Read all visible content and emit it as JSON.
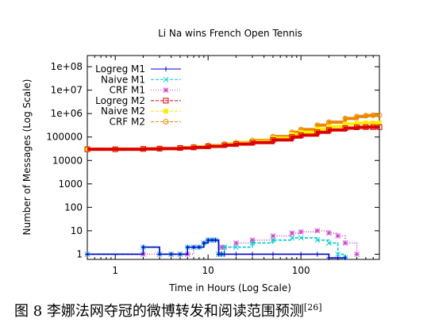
{
  "chart_data": {
    "type": "line",
    "title": "Li Na wins French Open Tennis",
    "xlabel": "Time in Hours (Log Scale)",
    "ylabel": "Number of Messages (Log Scale)",
    "x_scale": "log",
    "y_scale": "log",
    "xlim": [
      0.5,
      700
    ],
    "ylim": [
      0.6,
      300000000
    ],
    "x_ticks": [
      1,
      10,
      100
    ],
    "x_tick_labels": [
      "1",
      "10",
      "100"
    ],
    "y_ticks": [
      1,
      10,
      100,
      1000,
      10000,
      100000,
      1000000,
      10000000,
      100000000
    ],
    "y_tick_labels": [
      "1",
      "10",
      "100",
      "1000",
      "10000",
      "100000",
      "1e+06",
      "1e+07",
      "1e+08"
    ],
    "grid": false,
    "legend_position": "top-left",
    "series": [
      {
        "name": "Logreg M1",
        "color": "#0000cc",
        "marker": "plus",
        "line": "solid",
        "x": [
          0.5,
          2,
          3,
          4,
          5,
          6,
          7,
          8,
          9,
          10,
          11,
          12,
          13,
          14,
          15,
          20,
          30,
          50,
          100,
          150,
          200,
          250,
          300
        ],
        "y": [
          1,
          2,
          1,
          1,
          1,
          2,
          2,
          2,
          3,
          4,
          4,
          4,
          1,
          1,
          1,
          1,
          1,
          1,
          1,
          1,
          0.7,
          0.7,
          0.7
        ]
      },
      {
        "name": "Naive M1",
        "color": "#00cccc",
        "marker": "cross",
        "line": "dashed",
        "x": [
          0.5,
          2,
          3,
          4,
          5,
          6,
          7,
          8,
          9,
          10,
          11,
          12,
          13,
          14,
          15,
          20,
          30,
          50,
          80,
          100,
          150,
          200,
          250,
          300
        ],
        "y": [
          1,
          2,
          1,
          1,
          1,
          2,
          2,
          2,
          3,
          4,
          4,
          4,
          1,
          1,
          2,
          2,
          3,
          4,
          5,
          5,
          4,
          3,
          1,
          0.7
        ]
      },
      {
        "name": "CRF M1",
        "color": "#cc44cc",
        "marker": "star",
        "line": "dotted",
        "x": [
          0.5,
          2,
          3,
          4,
          5,
          6,
          7,
          8,
          9,
          10,
          11,
          12,
          13,
          14,
          15,
          20,
          30,
          50,
          80,
          100,
          150,
          200,
          250,
          300,
          400
        ],
        "y": [
          1,
          1,
          1,
          1,
          1,
          1,
          2,
          2,
          3,
          4,
          4,
          4,
          1,
          2,
          2,
          3,
          4,
          6,
          8,
          9,
          10,
          8,
          6,
          3,
          1
        ]
      },
      {
        "name": "Logreg M2",
        "color": "#dd0000",
        "marker": "square",
        "line": "dashed",
        "x": [
          0.5,
          1,
          2,
          3,
          5,
          7,
          10,
          15,
          20,
          30,
          50,
          80,
          100,
          150,
          200,
          300,
          400,
          500,
          600,
          700
        ],
        "y": [
          30000,
          30000,
          31000,
          32000,
          34000,
          36000,
          40000,
          45000,
          50000,
          58000,
          75000,
          100000,
          120000,
          160000,
          200000,
          240000,
          260000,
          265000,
          265000,
          265000
        ]
      },
      {
        "name": "Naive M2",
        "color": "#ffee00",
        "marker": "filled-square",
        "line": "dashed",
        "x": [
          0.5,
          1,
          2,
          3,
          5,
          7,
          10,
          15,
          20,
          30,
          50,
          80,
          100,
          150,
          200,
          300,
          400,
          500,
          600,
          700
        ],
        "y": [
          30000,
          30000,
          31000,
          32000,
          35000,
          38000,
          42000,
          48000,
          55000,
          65000,
          90000,
          130000,
          160000,
          220000,
          280000,
          360000,
          390000,
          400000,
          400000,
          400000
        ]
      },
      {
        "name": "CRF M2",
        "color": "#ee8800",
        "marker": "circle",
        "line": "dashed",
        "x": [
          0.5,
          1,
          2,
          3,
          5,
          7,
          10,
          15,
          20,
          30,
          50,
          80,
          100,
          150,
          200,
          300,
          400,
          500,
          600,
          700
        ],
        "y": [
          30000,
          30000,
          31000,
          32000,
          35000,
          38000,
          43000,
          50000,
          58000,
          72000,
          105000,
          160000,
          210000,
          320000,
          430000,
          620000,
          750000,
          820000,
          850000,
          850000
        ]
      }
    ]
  },
  "caption": {
    "text": "图  8  李娜法网夺冠的微博转发和阅读范围预测",
    "ref": "[26]"
  }
}
